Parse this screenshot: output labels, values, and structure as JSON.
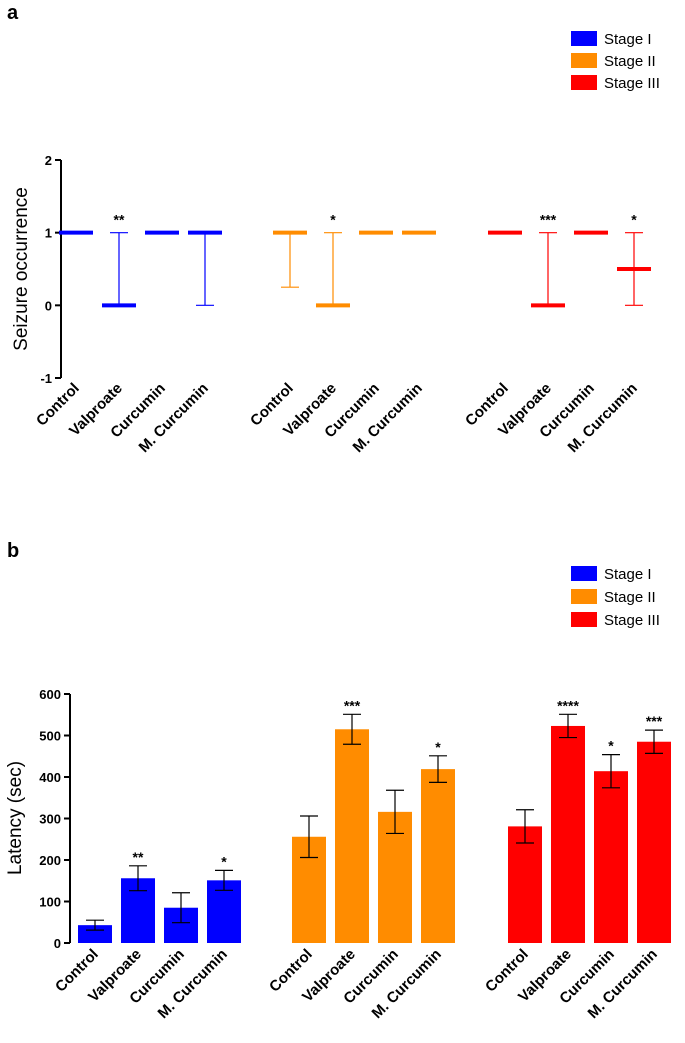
{
  "chart_data": [
    {
      "type": "range",
      "panel_label": "a",
      "ylabel": "Seizure occurrence",
      "ylim": [
        -1,
        2
      ],
      "yticks": [
        -1,
        0,
        1,
        2
      ],
      "legend": [
        "Stage I",
        "Stage II",
        "Stage III"
      ],
      "legend_position": "top-right",
      "categories": [
        "Control",
        "Valproate",
        "Curcumin",
        "M. Curcumin"
      ],
      "series": [
        {
          "name": "Stage I",
          "color": "#0000ff",
          "median": [
            1,
            0,
            1,
            1
          ],
          "low": [
            1,
            0,
            1,
            0
          ],
          "high": [
            1,
            1,
            1,
            1
          ],
          "significance": [
            "",
            "**",
            "",
            ""
          ]
        },
        {
          "name": "Stage II",
          "color": "#ff8c00",
          "median": [
            1,
            0,
            1,
            1
          ],
          "low": [
            0.25,
            0,
            1,
            1
          ],
          "high": [
            1,
            1,
            1,
            1
          ],
          "significance": [
            "",
            "*",
            "",
            ""
          ]
        },
        {
          "name": "Stage III",
          "color": "#ff0000",
          "median": [
            1,
            0,
            1,
            0.5
          ],
          "low": [
            1,
            0,
            1,
            0
          ],
          "high": [
            1,
            1,
            1,
            1
          ],
          "significance": [
            "",
            "***",
            "",
            "*"
          ]
        }
      ]
    },
    {
      "type": "bar",
      "panel_label": "b",
      "ylabel": "Latency (sec)",
      "ylim": [
        0,
        600
      ],
      "yticks": [
        0,
        100,
        200,
        300,
        400,
        500,
        600
      ],
      "legend": [
        "Stage I",
        "Stage II",
        "Stage III"
      ],
      "legend_position": "top-right",
      "categories": [
        "Control",
        "Valproate",
        "Curcumin",
        "M. Curcumin"
      ],
      "series": [
        {
          "name": "Stage I",
          "color": "#0000ff",
          "values": [
            43,
            156,
            85,
            151
          ],
          "error": [
            12,
            30,
            36,
            24
          ],
          "significance": [
            "",
            "**",
            "",
            "*"
          ]
        },
        {
          "name": "Stage II",
          "color": "#ff8c00",
          "values": [
            256,
            515,
            316,
            419
          ],
          "error": [
            50,
            36,
            52,
            32
          ],
          "significance": [
            "",
            "***",
            "",
            "*"
          ]
        },
        {
          "name": "Stage III",
          "color": "#ff0000",
          "values": [
            281,
            523,
            414,
            485
          ],
          "error": [
            40,
            28,
            40,
            28
          ],
          "significance": [
            "",
            "****",
            "*",
            "***"
          ]
        }
      ]
    }
  ]
}
